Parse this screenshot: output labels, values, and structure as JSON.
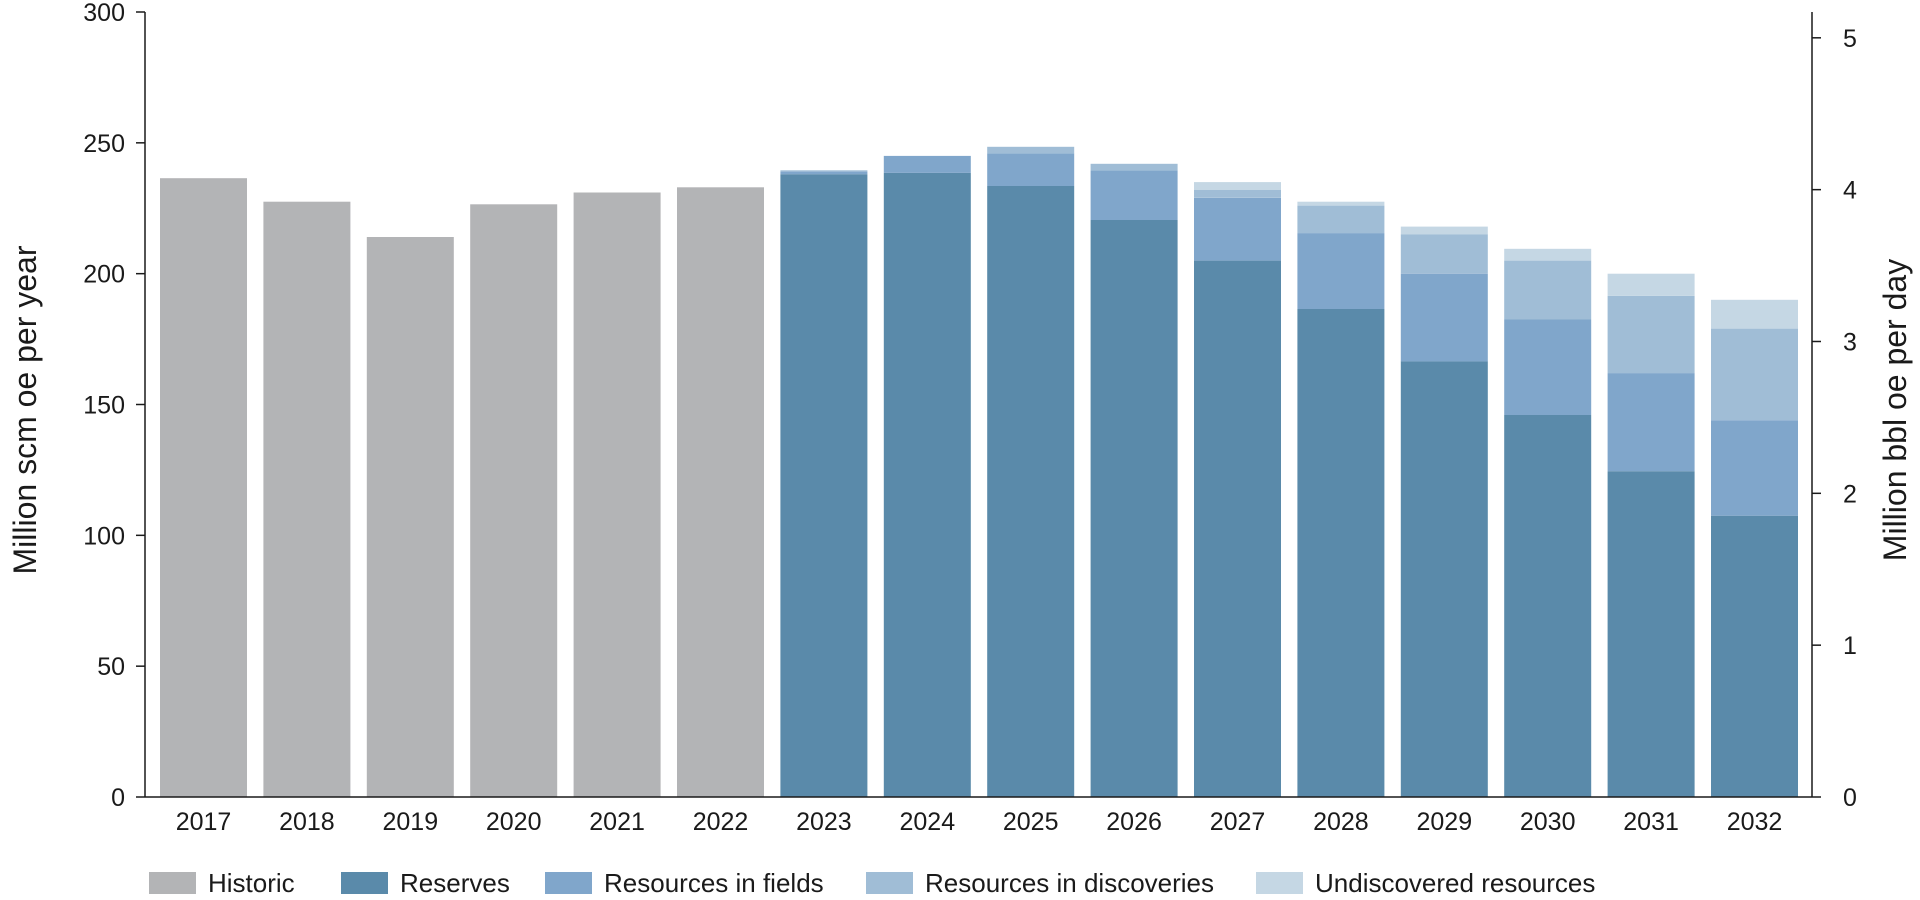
{
  "chart_data": {
    "type": "bar",
    "stacked": true,
    "categories": [
      "2017",
      "2018",
      "2019",
      "2020",
      "2021",
      "2022",
      "2023",
      "2024",
      "2025",
      "2026",
      "2027",
      "2028",
      "2029",
      "2030",
      "2031",
      "2032"
    ],
    "series": [
      {
        "name": "Historic",
        "color": "#b3b4b6",
        "values": [
          236.5,
          227.5,
          214,
          226.5,
          231,
          233,
          0,
          0,
          0,
          0,
          0,
          0,
          0,
          0,
          0,
          0
        ]
      },
      {
        "name": "Reserves",
        "color": "#5a8aaa",
        "values": [
          0,
          0,
          0,
          0,
          0,
          0,
          238,
          238.5,
          233.5,
          220.5,
          205,
          186.5,
          166.5,
          146,
          124.5,
          107.5
        ]
      },
      {
        "name": "Resources in fields",
        "color": "#80a6cb",
        "values": [
          0,
          0,
          0,
          0,
          0,
          0,
          1,
          6.5,
          12.5,
          19,
          24,
          29,
          33.5,
          36.5,
          37.5,
          36.5
        ]
      },
      {
        "name": "Resources in discoveries",
        "color": "#a0bdd6",
        "values": [
          0,
          0,
          0,
          0,
          0,
          0,
          0.5,
          0,
          2.5,
          2.5,
          3,
          10.5,
          15,
          22.5,
          29.5,
          35
        ]
      },
      {
        "name": "Undiscovered resources",
        "color": "#c5d7e4",
        "values": [
          0,
          0,
          0,
          0,
          0,
          0,
          0,
          0,
          0,
          0,
          3,
          1.5,
          3,
          4.5,
          8.5,
          11
        ]
      }
    ],
    "ylabel": "Million scm oe per year",
    "y2label": "Million bbl oe per day",
    "ylim": [
      0,
      300
    ],
    "yticks": [
      0,
      50,
      100,
      150,
      200,
      250,
      300
    ],
    "y2lim": [
      0,
      5.17
    ],
    "y2ticks": [
      0,
      1,
      2,
      3,
      4,
      5
    ],
    "grid": false,
    "legend_position": "bottom"
  }
}
